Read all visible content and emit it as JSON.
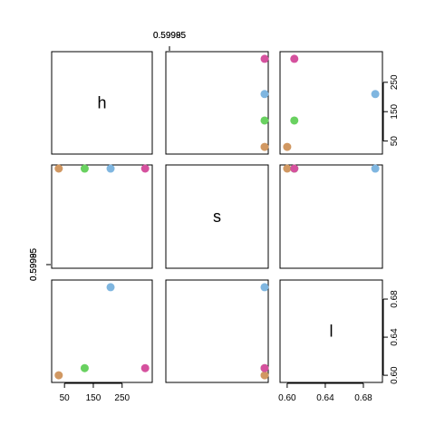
{
  "chart_data": {
    "type": "scatter",
    "subtype": "pairs-matrix",
    "variables": [
      "h",
      "s",
      "l"
    ],
    "points": [
      {
        "h": 30,
        "s": 1.0,
        "l": 0.6,
        "color": "#D19862"
      },
      {
        "h": 120,
        "s": 0.99993,
        "l": 0.6075,
        "color": "#69D160"
      },
      {
        "h": 210,
        "s": 0.99983,
        "l": 0.6925,
        "color": "#7FB6E0"
      },
      {
        "h": 330,
        "s": 1.0,
        "l": 0.6075,
        "color": "#D5519E"
      }
    ],
    "ranges": {
      "h": [
        18,
        342
      ],
      "s": [
        0.599826,
        1.0
      ],
      "l": [
        0.5963,
        0.6962
      ]
    },
    "ticks": {
      "h": {
        "values": [
          50,
          150,
          250
        ],
        "labels": [
          "50",
          "150",
          "250"
        ]
      },
      "s": {
        "values": [
          0.599852,
          0.599952
        ],
        "labels": [
          "0.59985",
          "0.59995"
        ]
      },
      "l": {
        "values": [
          0.6,
          0.64,
          0.68
        ],
        "labels": [
          "0.60",
          "0.64",
          "0.68"
        ]
      }
    },
    "s_display_offset": -0.4,
    "grid": false,
    "legend": "none"
  }
}
